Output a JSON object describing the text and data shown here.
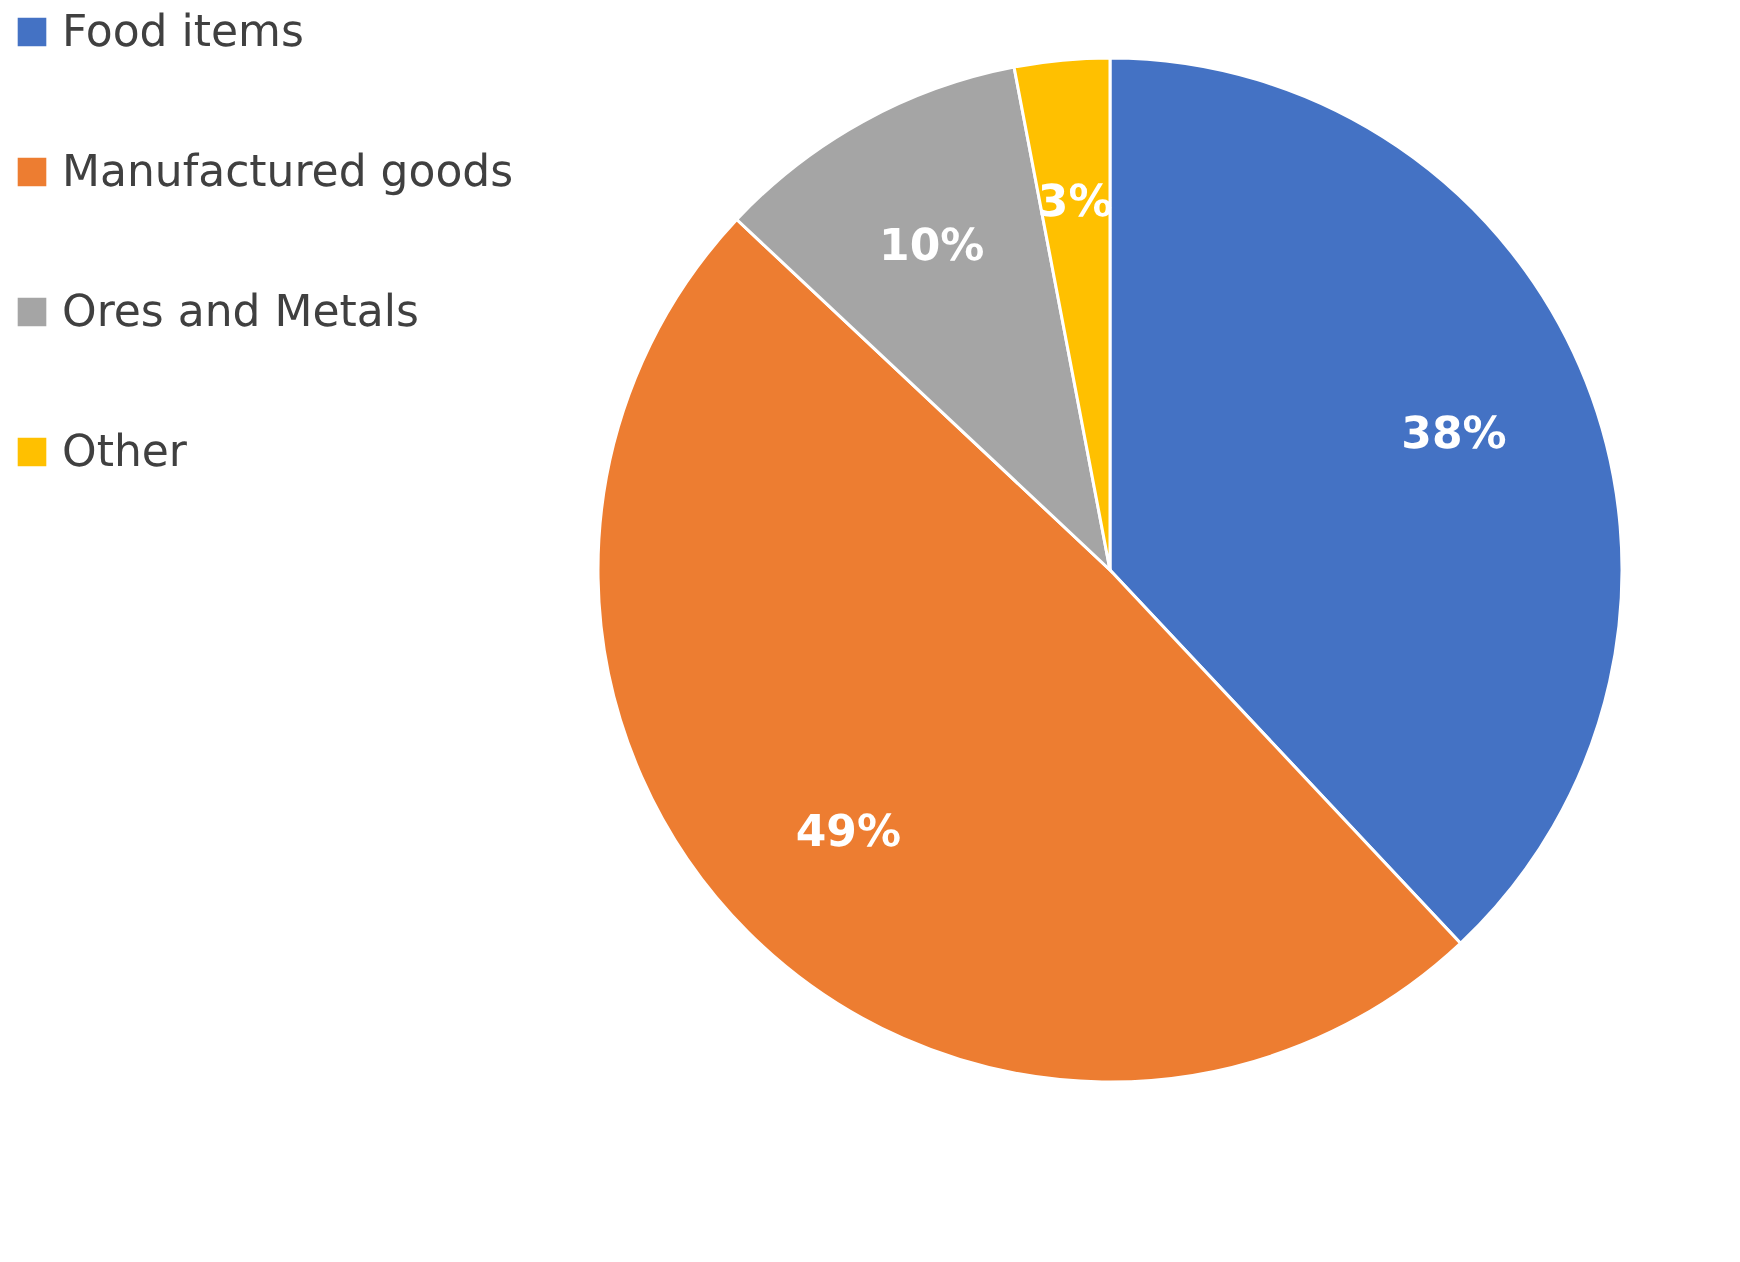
{
  "chart_data": {
    "type": "pie",
    "categories": [
      "Food items",
      "Manufactured goods",
      "Ores and Metals",
      "Other"
    ],
    "values": [
      38,
      49,
      10,
      3
    ],
    "colors": [
      "#4472c4",
      "#ed7d31",
      "#a5a5a5",
      "#ffc000"
    ],
    "value_labels": [
      "38%",
      "49%",
      "10%",
      "3%"
    ],
    "legend": "left"
  }
}
